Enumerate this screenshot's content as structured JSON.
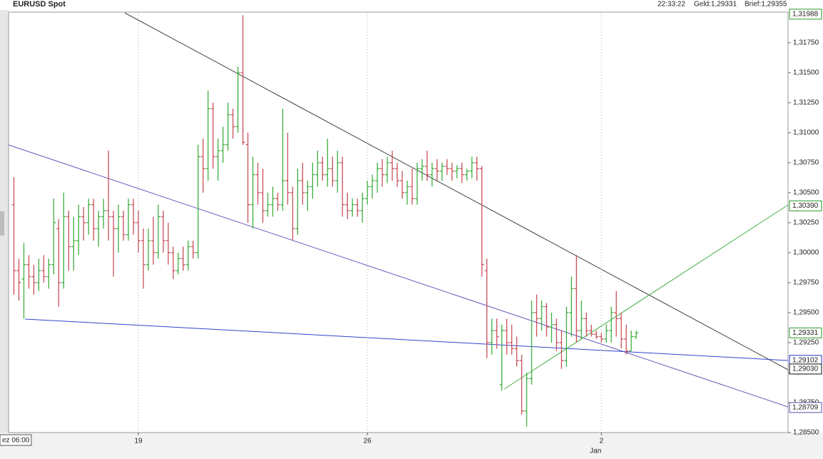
{
  "chart_data": {
    "type": "ohlc",
    "title": "EURUSD Spot",
    "header_info": [
      "22:33:22",
      "Geld:1,29331",
      "Brief:1,29355"
    ],
    "corner_label": "ez 06:00",
    "x_period_label": "Jan",
    "up_color": "#3fae3f",
    "down_color": "#c8505a",
    "grid": "x",
    "categories": [
      null,
      null,
      null,
      null,
      null,
      null,
      null,
      null,
      null,
      null,
      null,
      null,
      null,
      null,
      null,
      null,
      null,
      null,
      null,
      null,
      null,
      null,
      null,
      null,
      null,
      "19",
      null,
      null,
      null,
      null,
      null,
      null,
      null,
      null,
      null,
      null,
      null,
      null,
      null,
      null,
      null,
      null,
      null,
      null,
      null,
      null,
      null,
      null,
      null,
      null,
      null,
      null,
      null,
      null,
      null,
      null,
      null,
      null,
      null,
      null,
      null,
      null,
      null,
      null,
      null,
      null,
      null,
      null,
      null,
      null,
      null,
      "26",
      null,
      null,
      null,
      null,
      null,
      null,
      null,
      null,
      null,
      null,
      null,
      null,
      null,
      null,
      null,
      null,
      null,
      null,
      null,
      null,
      null,
      null,
      null,
      null,
      null,
      null,
      null,
      null,
      null,
      null,
      null,
      null,
      null,
      null,
      null,
      null,
      null,
      null,
      null,
      null,
      null,
      null,
      null,
      null,
      null,
      null,
      "2",
      null,
      null,
      null,
      null,
      null,
      null,
      null,
      null,
      null,
      null,
      null,
      null,
      null,
      null,
      null,
      null,
      null,
      null,
      null,
      null,
      null,
      null,
      null,
      null,
      null,
      null,
      null,
      null,
      null,
      null,
      null,
      null,
      null,
      null,
      null,
      null,
      null
    ],
    "values": [
      [
        1.304,
        1.3063,
        1.2965,
        1.2985
      ],
      [
        1.2985,
        1.2995,
        1.296,
        1.2975
      ],
      [
        1.2978,
        1.3008,
        1.2945,
        1.299
      ],
      [
        1.299,
        1.2998,
        1.297,
        1.298
      ],
      [
        1.298,
        1.299,
        1.2965,
        1.2975
      ],
      [
        1.2975,
        1.2995,
        1.2968,
        1.2985
      ],
      [
        1.2985,
        1.2998,
        1.2975,
        1.298
      ],
      [
        1.298,
        1.2995,
        1.297,
        1.299
      ],
      [
        1.299,
        1.3045,
        1.2982,
        1.3025
      ],
      [
        1.302,
        1.3028,
        1.2955,
        1.2975
      ],
      [
        1.2975,
        1.305,
        1.297,
        1.303
      ],
      [
        1.303,
        1.3035,
        1.2985,
        1.3005
      ],
      [
        1.3005,
        1.303,
        1.2985,
        1.301
      ],
      [
        1.301,
        1.304,
        1.2998,
        1.303
      ],
      [
        1.303,
        1.3038,
        1.301,
        1.3025
      ],
      [
        1.3025,
        1.3045,
        1.3015,
        1.304
      ],
      [
        1.304,
        1.3045,
        1.301,
        1.302
      ],
      [
        1.302,
        1.3035,
        1.3005,
        1.303
      ],
      [
        1.303,
        1.3045,
        1.302,
        1.3035
      ],
      [
        1.3035,
        1.3085,
        1.301,
        1.303
      ],
      [
        1.303,
        1.3035,
        1.298,
        1.302
      ],
      [
        1.302,
        1.304,
        1.3,
        1.303
      ],
      [
        1.303,
        1.3035,
        1.301,
        1.3015
      ],
      [
        1.3015,
        1.3045,
        1.301,
        1.304
      ],
      [
        1.304,
        1.3045,
        1.3015,
        1.3025
      ],
      [
        1.3025,
        1.3035,
        1.3,
        1.301
      ],
      [
        1.301,
        1.302,
        1.297,
        1.299
      ],
      [
        1.299,
        1.302,
        1.2985,
        1.301
      ],
      [
        1.301,
        1.303,
        1.299,
        1.3
      ],
      [
        1.3,
        1.304,
        1.2995,
        1.303
      ],
      [
        1.303,
        1.3035,
        1.3,
        1.301
      ],
      [
        1.301,
        1.3025,
        1.299,
        1.3
      ],
      [
        1.3,
        1.3005,
        1.2978,
        1.2985
      ],
      [
        1.2985,
        1.3,
        1.2982,
        1.2995
      ],
      [
        1.2995,
        1.3005,
        1.2985,
        1.299
      ],
      [
        1.299,
        1.301,
        1.2985,
        1.3005
      ],
      [
        1.3005,
        1.301,
        1.2995,
        1.3
      ],
      [
        1.3,
        1.309,
        1.2995,
        1.308
      ],
      [
        1.308,
        1.3095,
        1.305,
        1.307
      ],
      [
        1.307,
        1.3135,
        1.306,
        1.312
      ],
      [
        1.312,
        1.3125,
        1.307,
        1.308
      ],
      [
        1.308,
        1.3095,
        1.306,
        1.3085
      ],
      [
        1.3085,
        1.3105,
        1.3075,
        1.309
      ],
      [
        1.309,
        1.3125,
        1.3085,
        1.3115
      ],
      [
        1.3115,
        1.312,
        1.3095,
        1.3105
      ],
      [
        1.3105,
        1.3155,
        1.31,
        1.315
      ],
      [
        1.315,
        1.3198,
        1.309,
        1.3092
      ],
      [
        1.309,
        1.31,
        1.3025,
        1.304
      ],
      [
        1.304,
        1.308,
        1.302,
        1.3065
      ],
      [
        1.3065,
        1.3075,
        1.304,
        1.305
      ],
      [
        1.305,
        1.307,
        1.3025,
        1.3035
      ],
      [
        1.3035,
        1.305,
        1.303,
        1.304
      ],
      [
        1.304,
        1.3055,
        1.303,
        1.3045
      ],
      [
        1.3045,
        1.305,
        1.3035,
        1.304
      ],
      [
        1.304,
        1.312,
        1.3035,
        1.306
      ],
      [
        1.306,
        1.31,
        1.304,
        1.305
      ],
      [
        1.305,
        1.3055,
        1.301,
        1.302
      ],
      [
        1.302,
        1.307,
        1.3015,
        1.306
      ],
      [
        1.306,
        1.3075,
        1.304,
        1.305
      ],
      [
        1.305,
        1.306,
        1.3035,
        1.3055
      ],
      [
        1.3055,
        1.3075,
        1.3045,
        1.3065
      ],
      [
        1.3065,
        1.3085,
        1.3055,
        1.3075
      ],
      [
        1.3075,
        1.308,
        1.306,
        1.3065
      ],
      [
        1.3065,
        1.3095,
        1.3055,
        1.307
      ],
      [
        1.307,
        1.308,
        1.3055,
        1.306
      ],
      [
        1.306,
        1.3085,
        1.305,
        1.3075
      ],
      [
        1.3075,
        1.308,
        1.303,
        1.304
      ],
      [
        1.304,
        1.305,
        1.3028,
        1.3035
      ],
      [
        1.3035,
        1.3045,
        1.303,
        1.304
      ],
      [
        1.304,
        1.3045,
        1.303,
        1.3035
      ],
      [
        1.3035,
        1.305,
        1.3025,
        1.3045
      ],
      [
        1.3045,
        1.306,
        1.304,
        1.3055
      ],
      [
        1.3055,
        1.3065,
        1.3045,
        1.306
      ],
      [
        1.306,
        1.3075,
        1.305,
        1.307
      ],
      [
        1.307,
        1.3078,
        1.3055,
        1.3065
      ],
      [
        1.3065,
        1.308,
        1.3058,
        1.3075
      ],
      [
        1.3075,
        1.3085,
        1.306,
        1.307
      ],
      [
        1.307,
        1.3075,
        1.3055,
        1.306
      ],
      [
        1.306,
        1.3068,
        1.3045,
        1.305
      ],
      [
        1.305,
        1.306,
        1.304,
        1.3055
      ],
      [
        1.3055,
        1.307,
        1.304,
        1.3045
      ],
      [
        1.3045,
        1.3075,
        1.304,
        1.307
      ],
      [
        1.307,
        1.3078,
        1.306,
        1.3072
      ],
      [
        1.3072,
        1.3085,
        1.306,
        1.3065
      ],
      [
        1.3065,
        1.3075,
        1.3055,
        1.307
      ],
      [
        1.307,
        1.3078,
        1.306,
        1.3068
      ],
      [
        1.3068,
        1.3075,
        1.306,
        1.3072
      ],
      [
        1.3072,
        1.3078,
        1.3065,
        1.307
      ],
      [
        1.307,
        1.3075,
        1.306,
        1.3068
      ],
      [
        1.3068,
        1.3073,
        1.3062,
        1.307
      ],
      [
        1.307,
        1.3075,
        1.3058,
        1.3065
      ],
      [
        1.3065,
        1.307,
        1.306,
        1.3068
      ],
      [
        1.3068,
        1.308,
        1.3062,
        1.3075
      ],
      [
        1.3075,
        1.308,
        1.306,
        1.307
      ],
      [
        1.307,
        1.3072,
        1.298,
        1.299
      ],
      [
        1.2985,
        1.2995,
        1.2912,
        1.2925
      ],
      [
        1.2925,
        1.2945,
        1.2915,
        1.2935
      ],
      [
        1.2935,
        1.2945,
        1.292,
        1.293
      ],
      [
        1.289,
        1.294,
        1.2885,
        1.2935
      ],
      [
        1.2935,
        1.2945,
        1.2915,
        1.2925
      ],
      [
        1.2925,
        1.294,
        1.2915,
        1.292
      ],
      [
        1.292,
        1.293,
        1.2905,
        1.291
      ],
      [
        1.291,
        1.2915,
        1.2865,
        1.2868
      ],
      [
        1.2868,
        1.29,
        1.2855,
        1.2895
      ],
      [
        1.2895,
        1.296,
        1.289,
        1.295
      ],
      [
        1.295,
        1.2965,
        1.293,
        1.2945
      ],
      [
        1.2945,
        1.296,
        1.2935,
        1.2955
      ],
      [
        1.2955,
        1.2958,
        1.293,
        1.2938
      ],
      [
        1.2938,
        1.295,
        1.2925,
        1.294
      ],
      [
        1.294,
        1.2945,
        1.2918,
        1.2925
      ],
      [
        1.2925,
        1.2935,
        1.2903,
        1.291
      ],
      [
        1.291,
        1.2955,
        1.2905,
        1.295
      ],
      [
        1.295,
        1.298,
        1.293,
        1.297
      ],
      [
        1.297,
        1.2998,
        1.2925,
        1.2935
      ],
      [
        1.2935,
        1.296,
        1.2928,
        1.2945
      ],
      [
        1.2945,
        1.295,
        1.293,
        1.2935
      ],
      [
        1.2935,
        1.294,
        1.293,
        1.2932
      ],
      [
        1.2932,
        1.2935,
        1.2928,
        1.293
      ],
      [
        1.293,
        1.2933,
        1.2925,
        1.2928
      ],
      [
        1.2928,
        1.294,
        1.2925,
        1.2935
      ],
      [
        1.2935,
        1.2955,
        1.2925,
        1.295
      ],
      [
        1.295,
        1.2968,
        1.293,
        1.2945
      ],
      [
        1.2945,
        1.295,
        1.292,
        1.2928
      ],
      [
        1.2928,
        1.294,
        1.2915,
        1.2918
      ],
      [
        1.2918,
        1.2935,
        1.2918,
        1.293
      ],
      [
        1.293,
        1.2935,
        1.2928,
        1.2933
      ],
      null,
      null,
      null,
      null,
      null,
      null,
      null,
      null,
      null,
      null,
      null,
      null,
      null,
      null,
      null,
      null,
      null,
      null,
      null,
      null,
      null,
      null,
      null,
      null,
      null,
      null,
      null,
      null,
      null,
      null
    ],
    "ylim": [
      1.285,
      1.32005
    ],
    "yticks": [
      {
        "value": 1.285,
        "label": "1,28500"
      },
      {
        "value": 1.2875,
        "label": "1,28750"
      },
      {
        "value": 1.29,
        "label": "1,29000"
      },
      {
        "value": 1.2925,
        "label": "1,29250"
      },
      {
        "value": 1.295,
        "label": "1,29500"
      },
      {
        "value": 1.2975,
        "label": "1,29750"
      },
      {
        "value": 1.3,
        "label": "1,30000"
      },
      {
        "value": 1.3025,
        "label": "1,30250"
      },
      {
        "value": 1.305,
        "label": "1,30500"
      },
      {
        "value": 1.3075,
        "label": "1,30750"
      },
      {
        "value": 1.31,
        "label": "1,31000"
      },
      {
        "value": 1.3125,
        "label": "1,31250"
      },
      {
        "value": 1.315,
        "label": "1,31500"
      },
      {
        "value": 1.3175,
        "label": "1,31750"
      }
    ],
    "price_markers": [
      {
        "value": 1.31988,
        "label": "1,31988",
        "color": "#2a9a2a"
      },
      {
        "value": 1.3039,
        "label": "1,30390",
        "color": "#2a9a2a"
      },
      {
        "value": 1.29331,
        "label": "1,29331",
        "color": "#2a9a2a"
      },
      {
        "value": 1.29102,
        "label": "1,29102",
        "color": "#2233cc"
      },
      {
        "value": 1.2903,
        "label": "1,29030",
        "color": "#111111"
      },
      {
        "value": 1.28709,
        "label": "1,28709",
        "color": "#6a4aa8"
      }
    ]
  }
}
